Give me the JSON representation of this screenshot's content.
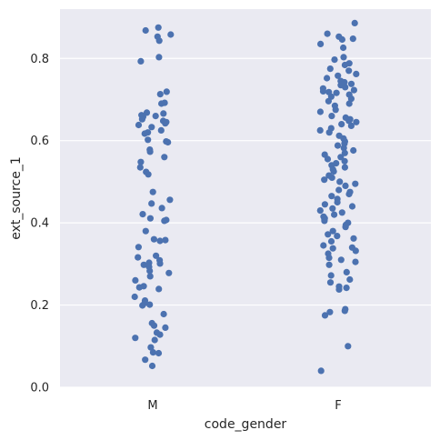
{
  "chart_data": {
    "type": "scatter",
    "title": "",
    "xlabel": "code_gender",
    "ylabel": "ext_source_1",
    "categories": [
      "M",
      "F"
    ],
    "ylim": [
      0.0,
      0.92
    ],
    "yticks": [
      0.0,
      0.2,
      0.4,
      0.6,
      0.8
    ],
    "ytick_labels": [
      "0.0",
      "0.2",
      "0.4",
      "0.6",
      "0.8"
    ],
    "grid": true,
    "point_color": "#4c72b0",
    "background_color": "#eaeaf2",
    "series": [
      {
        "category": "M",
        "values": [
          0.875,
          0.868,
          0.853,
          0.858,
          0.843,
          0.803,
          0.793,
          0.719,
          0.713,
          0.692,
          0.69,
          0.668,
          0.666,
          0.662,
          0.66,
          0.658,
          0.652,
          0.648,
          0.645,
          0.642,
          0.638,
          0.633,
          0.625,
          0.62,
          0.617,
          0.602,
          0.596,
          0.598,
          0.578,
          0.573,
          0.56,
          0.548,
          0.535,
          0.524,
          0.518,
          0.475,
          0.456,
          0.447,
          0.436,
          0.421,
          0.411,
          0.407,
          0.405,
          0.38,
          0.36,
          0.358,
          0.356,
          0.341,
          0.32,
          0.316,
          0.309,
          0.303,
          0.301,
          0.298,
          0.296,
          0.293,
          0.283,
          0.278,
          0.27,
          0.26,
          0.246,
          0.243,
          0.239,
          0.22,
          0.211,
          0.205,
          0.201,
          0.199,
          0.178,
          0.156,
          0.15,
          0.145,
          0.133,
          0.128,
          0.12,
          0.115,
          0.097,
          0.085,
          0.083,
          0.067,
          0.052
        ]
      },
      {
        "category": "F",
        "values": [
          0.886,
          0.86,
          0.853,
          0.848,
          0.846,
          0.835,
          0.826,
          0.803,
          0.797,
          0.788,
          0.784,
          0.775,
          0.77,
          0.762,
          0.758,
          0.752,
          0.745,
          0.742,
          0.738,
          0.735,
          0.73,
          0.727,
          0.723,
          0.72,
          0.718,
          0.716,
          0.712,
          0.707,
          0.702,
          0.696,
          0.69,
          0.685,
          0.675,
          0.67,
          0.66,
          0.656,
          0.652,
          0.648,
          0.645,
          0.64,
          0.636,
          0.63,
          0.625,
          0.62,
          0.612,
          0.605,
          0.598,
          0.593,
          0.588,
          0.582,
          0.576,
          0.57,
          0.566,
          0.56,
          0.555,
          0.55,
          0.545,
          0.54,
          0.535,
          0.53,
          0.525,
          0.515,
          0.51,
          0.505,
          0.5,
          0.495,
          0.49,
          0.48,
          0.475,
          0.47,
          0.465,
          0.458,
          0.45,
          0.445,
          0.44,
          0.435,
          0.43,
          0.425,
          0.42,
          0.415,
          0.411,
          0.408,
          0.405,
          0.4,
          0.395,
          0.39,
          0.38,
          0.372,
          0.368,
          0.362,
          0.355,
          0.345,
          0.34,
          0.338,
          0.332,
          0.325,
          0.315,
          0.31,
          0.305,
          0.298,
          0.28,
          0.272,
          0.262,
          0.255,
          0.245,
          0.242,
          0.238,
          0.19,
          0.186,
          0.183,
          0.175,
          0.1,
          0.04
        ]
      }
    ]
  }
}
